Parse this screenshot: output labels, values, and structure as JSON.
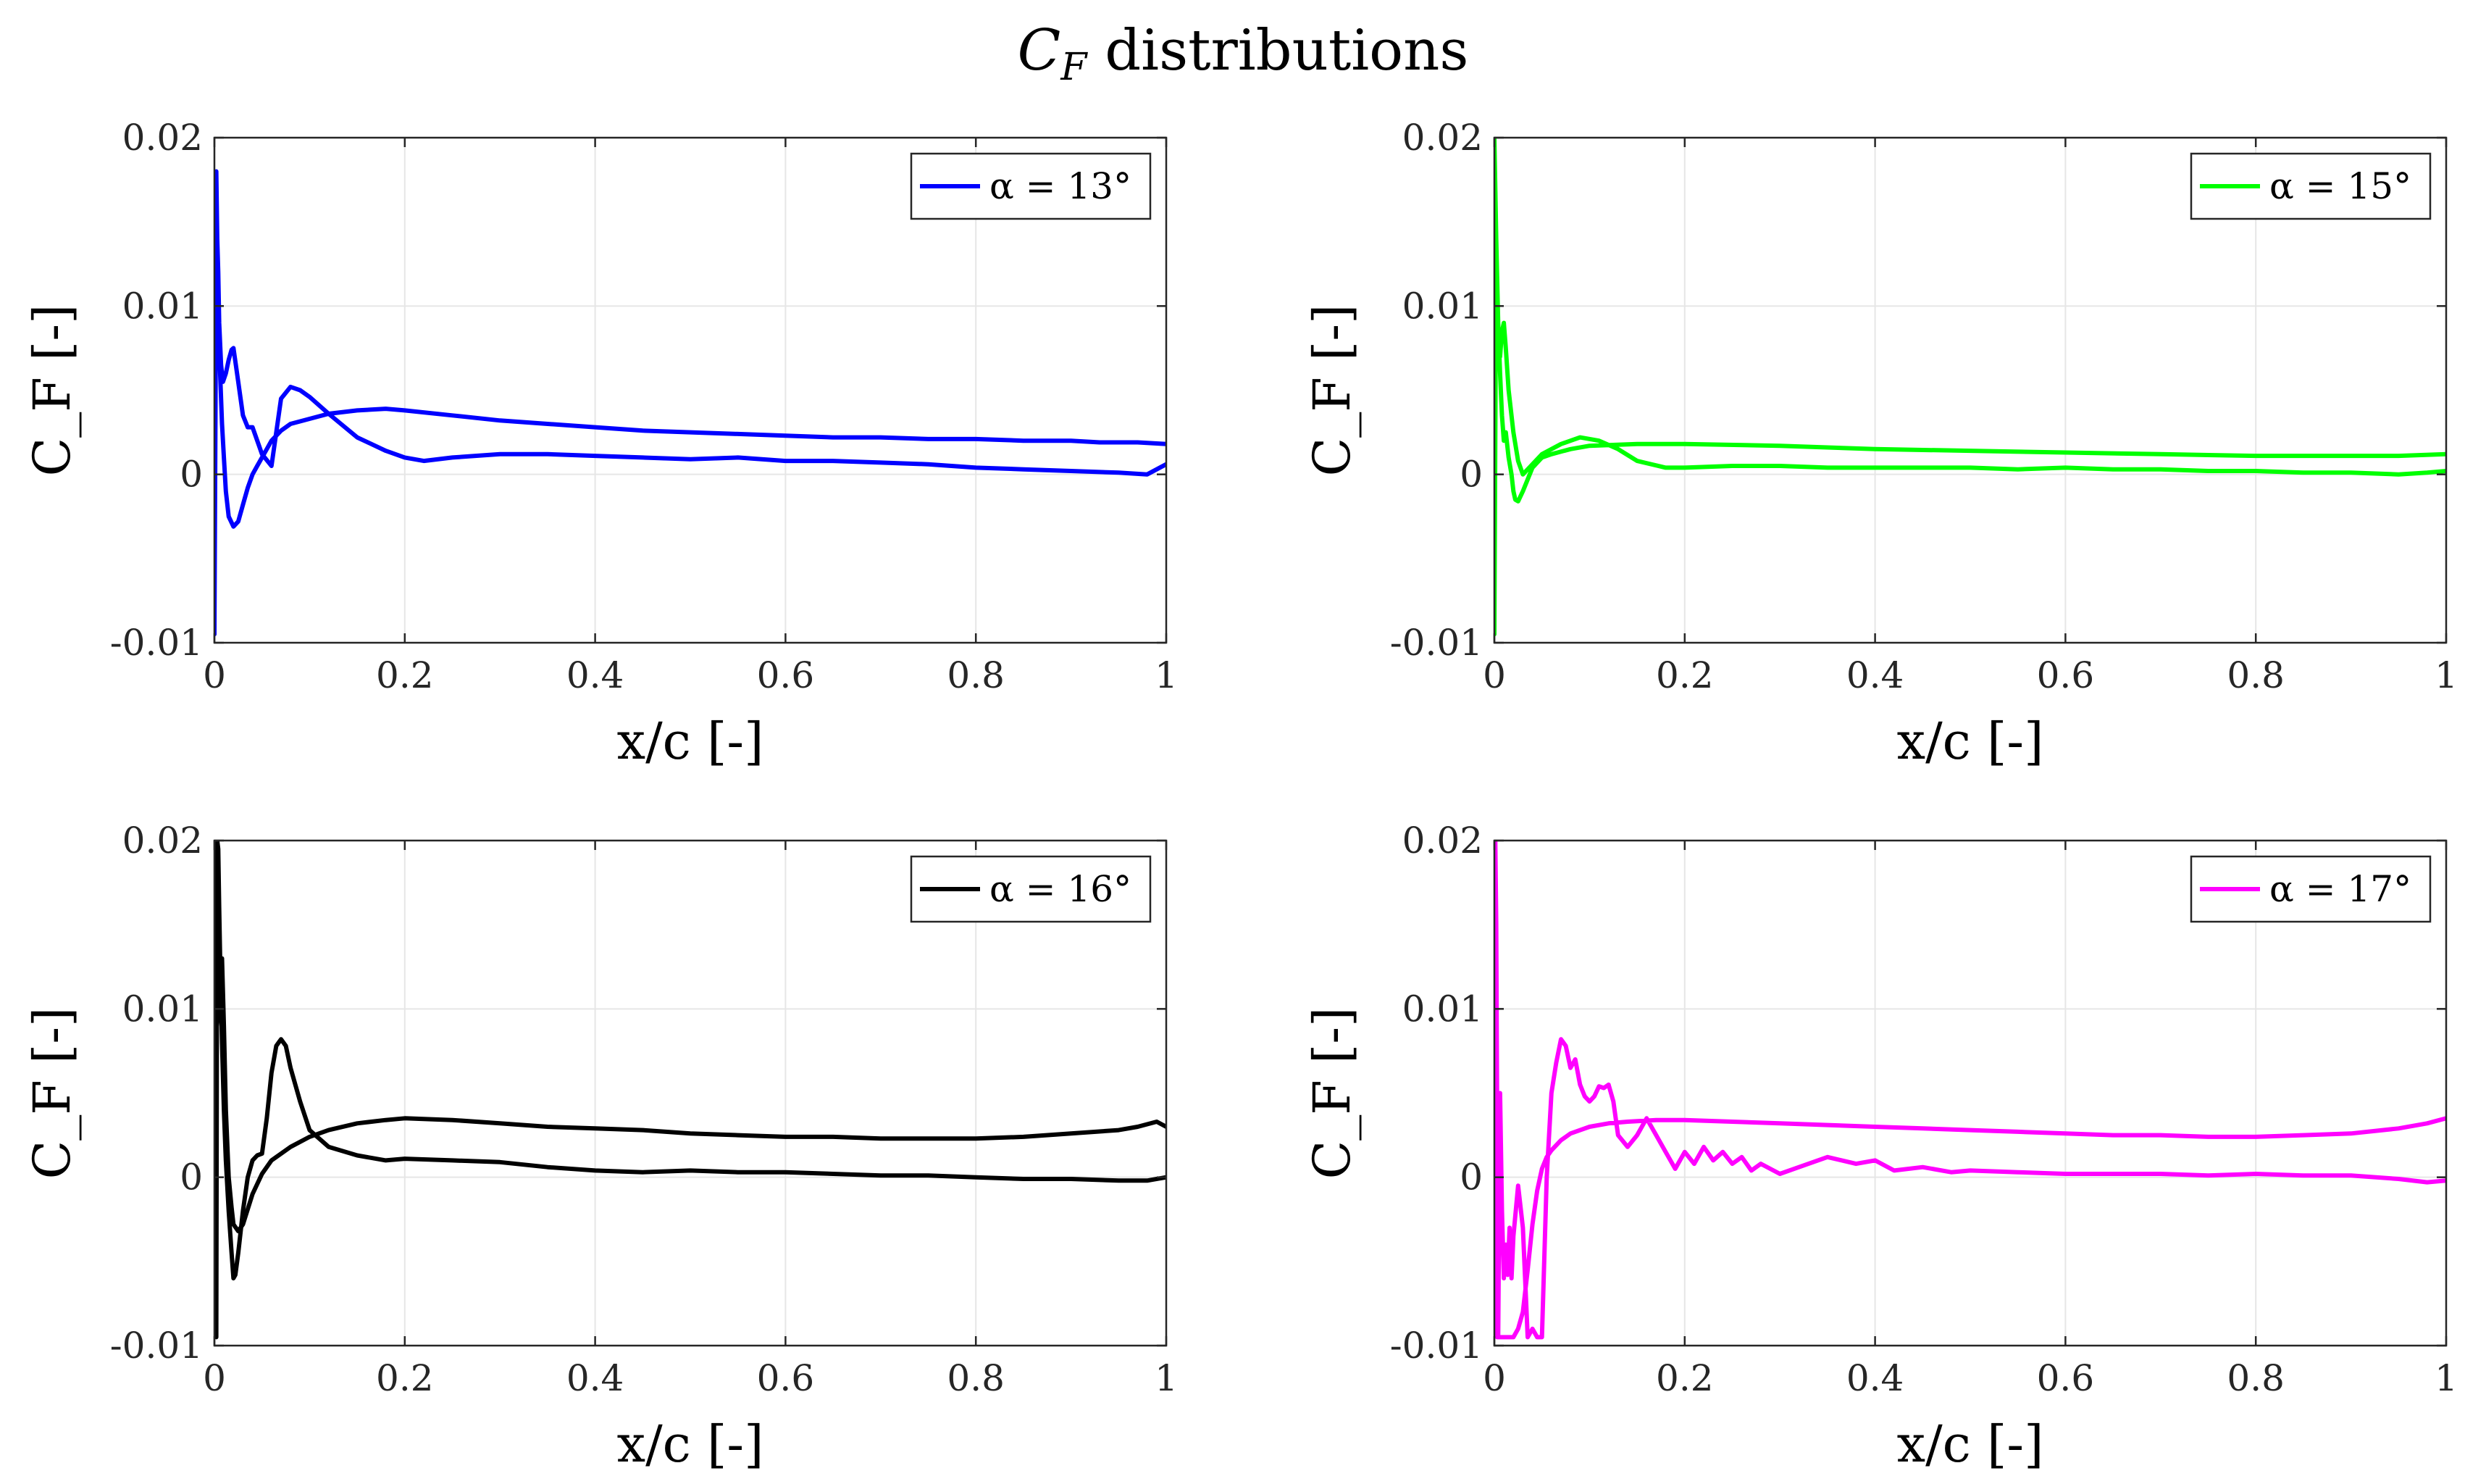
{
  "figure": {
    "title_main": "C",
    "title_sub": "F",
    "title_rest": " distributions"
  },
  "chart_data": [
    {
      "type": "line",
      "title": "",
      "xlabel": "x/c [-]",
      "ylabel": "C_F [-]",
      "xlim": [
        0,
        1
      ],
      "ylim": [
        -0.01,
        0.02
      ],
      "xticks": [
        0,
        0.2,
        0.4,
        0.6,
        0.8,
        1
      ],
      "xtick_labels": [
        "0",
        "0.2",
        "0.4",
        "0.6",
        "0.8",
        "1"
      ],
      "yticks": [
        -0.01,
        0,
        0.01,
        0.02
      ],
      "ytick_labels": [
        "-0.01",
        "0",
        "0.01",
        "0.02"
      ],
      "grid": true,
      "legend_position": "top-right",
      "series": [
        {
          "name": "α = 13°",
          "legend_label": "α = 13°",
          "color": "#0000ff",
          "x": [
            1.0,
            0.97,
            0.93,
            0.9,
            0.85,
            0.8,
            0.75,
            0.7,
            0.65,
            0.6,
            0.55,
            0.5,
            0.45,
            0.4,
            0.35,
            0.3,
            0.25,
            0.2,
            0.18,
            0.15,
            0.12,
            0.1,
            0.08,
            0.07,
            0.06,
            0.055,
            0.05,
            0.045,
            0.04,
            0.035,
            0.03,
            0.025,
            0.02,
            0.015,
            0.012,
            0.01,
            0.008,
            0.006,
            0.004,
            0.002,
            0.0,
            0.0,
            0.001,
            0.002,
            0.003,
            0.004,
            0.005,
            0.007,
            0.009,
            0.012,
            0.015,
            0.018,
            0.02,
            0.025,
            0.03,
            0.035,
            0.04,
            0.05,
            0.06,
            0.07,
            0.08,
            0.09,
            0.1,
            0.12,
            0.15,
            0.18,
            0.2,
            0.22,
            0.25,
            0.3,
            0.35,
            0.4,
            0.45,
            0.5,
            0.55,
            0.6,
            0.65,
            0.7,
            0.75,
            0.8,
            0.85,
            0.9,
            0.95,
            0.98,
            1.0
          ],
          "y": [
            0.0018,
            0.0019,
            0.0019,
            0.002,
            0.002,
            0.0021,
            0.0021,
            0.0022,
            0.0022,
            0.0023,
            0.0024,
            0.0025,
            0.0026,
            0.0028,
            0.003,
            0.0032,
            0.0035,
            0.0038,
            0.0039,
            0.0038,
            0.0036,
            0.0033,
            0.003,
            0.0026,
            0.002,
            0.0015,
            0.001,
            0.0005,
            0.0,
            -0.0008,
            -0.0018,
            -0.0028,
            -0.0031,
            -0.0025,
            -0.001,
            0.001,
            0.003,
            0.006,
            0.01,
            0.014,
            -0.0095,
            0.0095,
            0.013,
            0.018,
            0.014,
            0.012,
            0.009,
            0.0065,
            0.0055,
            0.006,
            0.0068,
            0.0074,
            0.0075,
            0.0055,
            0.0035,
            0.0028,
            0.0028,
            0.0012,
            0.0005,
            0.0045,
            0.0052,
            0.005,
            0.0046,
            0.0036,
            0.0022,
            0.0014,
            0.001,
            0.0008,
            0.001,
            0.0012,
            0.0012,
            0.0011,
            0.001,
            0.0009,
            0.001,
            0.0008,
            0.0008,
            0.0007,
            0.0006,
            0.0004,
            0.0003,
            0.0002,
            0.0001,
            0.0,
            0.0006
          ]
        }
      ]
    },
    {
      "type": "line",
      "title": "",
      "xlabel": "x/c [-]",
      "ylabel": "C_F [-]",
      "xlim": [
        0,
        1
      ],
      "ylim": [
        -0.01,
        0.02
      ],
      "xticks": [
        0,
        0.2,
        0.4,
        0.6,
        0.8,
        1
      ],
      "xtick_labels": [
        "0",
        "0.2",
        "0.4",
        "0.6",
        "0.8",
        "1"
      ],
      "yticks": [
        -0.01,
        0,
        0.01,
        0.02
      ],
      "ytick_labels": [
        "-0.01",
        "0",
        "0.01",
        "0.02"
      ],
      "grid": true,
      "legend_position": "top-right",
      "series": [
        {
          "name": "α = 15°",
          "legend_label": "α = 15°",
          "color": "#00ff00",
          "x": [
            1.0,
            0.95,
            0.9,
            0.8,
            0.7,
            0.6,
            0.5,
            0.4,
            0.3,
            0.2,
            0.15,
            0.1,
            0.08,
            0.06,
            0.05,
            0.04,
            0.035,
            0.03,
            0.025,
            0.022,
            0.02,
            0.018,
            0.015,
            0.012,
            0.01,
            0.008,
            0.006,
            0.004,
            0.002,
            0.0,
            0.0,
            0.002,
            0.004,
            0.006,
            0.008,
            0.01,
            0.012,
            0.015,
            0.02,
            0.025,
            0.03,
            0.04,
            0.05,
            0.07,
            0.09,
            0.11,
            0.13,
            0.15,
            0.18,
            0.2,
            0.25,
            0.3,
            0.35,
            0.4,
            0.45,
            0.5,
            0.55,
            0.6,
            0.65,
            0.7,
            0.75,
            0.8,
            0.85,
            0.9,
            0.95,
            0.98,
            1.0
          ],
          "y": [
            0.0012,
            0.0011,
            0.0011,
            0.0011,
            0.0012,
            0.0013,
            0.0014,
            0.0015,
            0.0017,
            0.0018,
            0.0018,
            0.0017,
            0.0015,
            0.0012,
            0.001,
            0.0004,
            -0.0003,
            -0.001,
            -0.0016,
            -0.0015,
            -0.001,
            0.0,
            0.001,
            0.0025,
            0.002,
            0.0035,
            0.006,
            0.009,
            0.014,
            -0.0095,
            0.02,
            0.014,
            0.008,
            0.007,
            0.0085,
            0.009,
            0.0075,
            0.005,
            0.0025,
            0.0008,
            0.0,
            0.0006,
            0.0012,
            0.0018,
            0.0022,
            0.002,
            0.0015,
            0.0008,
            0.0004,
            0.0004,
            0.0005,
            0.0005,
            0.0004,
            0.0004,
            0.0004,
            0.0004,
            0.0003,
            0.0004,
            0.0003,
            0.0003,
            0.0002,
            0.0002,
            0.0001,
            0.0001,
            0.0,
            0.0001,
            0.0002
          ]
        }
      ]
    },
    {
      "type": "line",
      "title": "",
      "xlabel": "x/c [-]",
      "ylabel": "C_F [-]",
      "xlim": [
        0,
        1
      ],
      "ylim": [
        -0.01,
        0.02
      ],
      "xticks": [
        0,
        0.2,
        0.4,
        0.6,
        0.8,
        1
      ],
      "xtick_labels": [
        "0",
        "0.2",
        "0.4",
        "0.6",
        "0.8",
        "1"
      ],
      "yticks": [
        -0.01,
        0,
        0.01,
        0.02
      ],
      "ytick_labels": [
        "-0.01",
        "0",
        "0.01",
        "0.02"
      ],
      "grid": true,
      "legend_position": "top-right",
      "series": [
        {
          "name": "α = 16°",
          "legend_label": "α = 16°",
          "color": "#000000",
          "x": [
            1.0,
            0.99,
            0.97,
            0.95,
            0.9,
            0.85,
            0.8,
            0.75,
            0.7,
            0.65,
            0.6,
            0.55,
            0.5,
            0.45,
            0.4,
            0.35,
            0.3,
            0.25,
            0.2,
            0.18,
            0.15,
            0.12,
            0.1,
            0.08,
            0.06,
            0.05,
            0.04,
            0.03,
            0.025,
            0.02,
            0.018,
            0.015,
            0.012,
            0.01,
            0.008,
            0.006,
            0.004,
            0.002,
            0.0,
            0.001,
            0.002,
            0.003,
            0.004,
            0.005,
            0.006,
            0.008,
            0.01,
            0.012,
            0.015,
            0.018,
            0.02,
            0.022,
            0.025,
            0.03,
            0.035,
            0.04,
            0.045,
            0.05,
            0.055,
            0.06,
            0.065,
            0.07,
            0.075,
            0.08,
            0.09,
            0.1,
            0.12,
            0.15,
            0.18,
            0.2,
            0.25,
            0.3,
            0.35,
            0.4,
            0.45,
            0.5,
            0.55,
            0.6,
            0.65,
            0.7,
            0.75,
            0.8,
            0.85,
            0.9,
            0.95,
            0.98,
            1.0
          ],
          "y": [
            0.003,
            0.0033,
            0.003,
            0.0028,
            0.0026,
            0.0024,
            0.0023,
            0.0023,
            0.0023,
            0.0024,
            0.0024,
            0.0025,
            0.0026,
            0.0028,
            0.0029,
            0.003,
            0.0032,
            0.0034,
            0.0035,
            0.0034,
            0.0032,
            0.0028,
            0.0024,
            0.0018,
            0.001,
            0.0002,
            -0.001,
            -0.0028,
            -0.0032,
            -0.0028,
            -0.0018,
            0.0,
            0.004,
            0.009,
            0.013,
            0.012,
            0.01,
            0.0085,
            0.0075,
            0.0,
            -0.0095,
            0.02,
            0.0195,
            0.016,
            0.013,
            0.008,
            0.004,
            0.001,
            -0.002,
            -0.0045,
            -0.006,
            -0.0058,
            -0.0045,
            -0.002,
            0.0,
            0.001,
            0.0013,
            0.0014,
            0.0035,
            0.0062,
            0.0078,
            0.0082,
            0.0078,
            0.0065,
            0.0045,
            0.0028,
            0.0018,
            0.0013,
            0.001,
            0.0011,
            0.001,
            0.0009,
            0.0006,
            0.0004,
            0.0003,
            0.0004,
            0.0003,
            0.0003,
            0.0002,
            0.0001,
            0.0001,
            0.0,
            -0.0001,
            -0.0001,
            -0.0002,
            -0.0002,
            0.0
          ]
        }
      ]
    },
    {
      "type": "line",
      "title": "",
      "xlabel": "x/c [-]",
      "ylabel": "C_F [-]",
      "xlim": [
        0,
        1
      ],
      "ylim": [
        -0.01,
        0.02
      ],
      "xticks": [
        0,
        0.2,
        0.4,
        0.6,
        0.8,
        1
      ],
      "xtick_labels": [
        "0",
        "0.2",
        "0.4",
        "0.6",
        "0.8",
        "1"
      ],
      "yticks": [
        -0.01,
        0,
        0.01,
        0.02
      ],
      "ytick_labels": [
        "-0.01",
        "0",
        "0.01",
        "0.02"
      ],
      "grid": true,
      "legend_position": "top-right",
      "series": [
        {
          "name": "α = 17°",
          "legend_label": "α = 17°",
          "color": "#ff00ff",
          "x": [
            1.0,
            0.98,
            0.95,
            0.9,
            0.85,
            0.8,
            0.75,
            0.7,
            0.65,
            0.6,
            0.55,
            0.5,
            0.45,
            0.4,
            0.35,
            0.3,
            0.25,
            0.2,
            0.17,
            0.14,
            0.12,
            0.1,
            0.08,
            0.07,
            0.06,
            0.055,
            0.05,
            0.045,
            0.04,
            0.035,
            0.03,
            0.025,
            0.02,
            0.015,
            0.01,
            0.006,
            0.003,
            0.001,
            0.002,
            0.004,
            0.006,
            0.008,
            0.01,
            0.012,
            0.014,
            0.016,
            0.018,
            0.02,
            0.025,
            0.03,
            0.035,
            0.04,
            0.045,
            0.05,
            0.055,
            0.06,
            0.065,
            0.07,
            0.075,
            0.08,
            0.085,
            0.09,
            0.095,
            0.1,
            0.105,
            0.11,
            0.115,
            0.12,
            0.125,
            0.13,
            0.14,
            0.15,
            0.16,
            0.17,
            0.18,
            0.19,
            0.2,
            0.21,
            0.22,
            0.23,
            0.24,
            0.25,
            0.26,
            0.27,
            0.28,
            0.3,
            0.32,
            0.35,
            0.38,
            0.4,
            0.42,
            0.45,
            0.48,
            0.5,
            0.55,
            0.6,
            0.65,
            0.7,
            0.75,
            0.8,
            0.85,
            0.9,
            0.95,
            0.98,
            1.0
          ],
          "y": [
            0.0035,
            0.0032,
            0.0029,
            0.0026,
            0.0025,
            0.0024,
            0.0024,
            0.0025,
            0.0025,
            0.0026,
            0.0027,
            0.0028,
            0.0029,
            0.003,
            0.0031,
            0.0032,
            0.0033,
            0.0034,
            0.0034,
            0.0033,
            0.0032,
            0.003,
            0.0026,
            0.0022,
            0.0016,
            0.0012,
            0.0005,
            -0.0008,
            -0.0028,
            -0.0055,
            -0.008,
            -0.009,
            -0.0095,
            -0.0095,
            -0.0095,
            -0.0095,
            -0.0095,
            0.02,
            0.015,
            -0.0095,
            0.005,
            -0.002,
            -0.006,
            -0.004,
            -0.0058,
            -0.003,
            -0.006,
            -0.0035,
            -0.0005,
            -0.003,
            -0.0095,
            -0.009,
            -0.0095,
            -0.0095,
            0.0,
            0.005,
            0.0068,
            0.0082,
            0.0078,
            0.0065,
            0.007,
            0.0055,
            0.0048,
            0.0045,
            0.0048,
            0.0054,
            0.0053,
            0.0055,
            0.0045,
            0.0025,
            0.0018,
            0.0025,
            0.0035,
            0.0025,
            0.0015,
            0.0005,
            0.0015,
            0.0008,
            0.0018,
            0.001,
            0.0015,
            0.0008,
            0.0012,
            0.0004,
            0.0008,
            0.0002,
            0.0006,
            0.0012,
            0.0008,
            0.001,
            0.0004,
            0.0006,
            0.0003,
            0.0004,
            0.0003,
            0.0002,
            0.0002,
            0.0002,
            0.0001,
            0.0002,
            0.0001,
            0.0001,
            -0.0001,
            -0.0003,
            -0.0002
          ]
        }
      ]
    }
  ]
}
